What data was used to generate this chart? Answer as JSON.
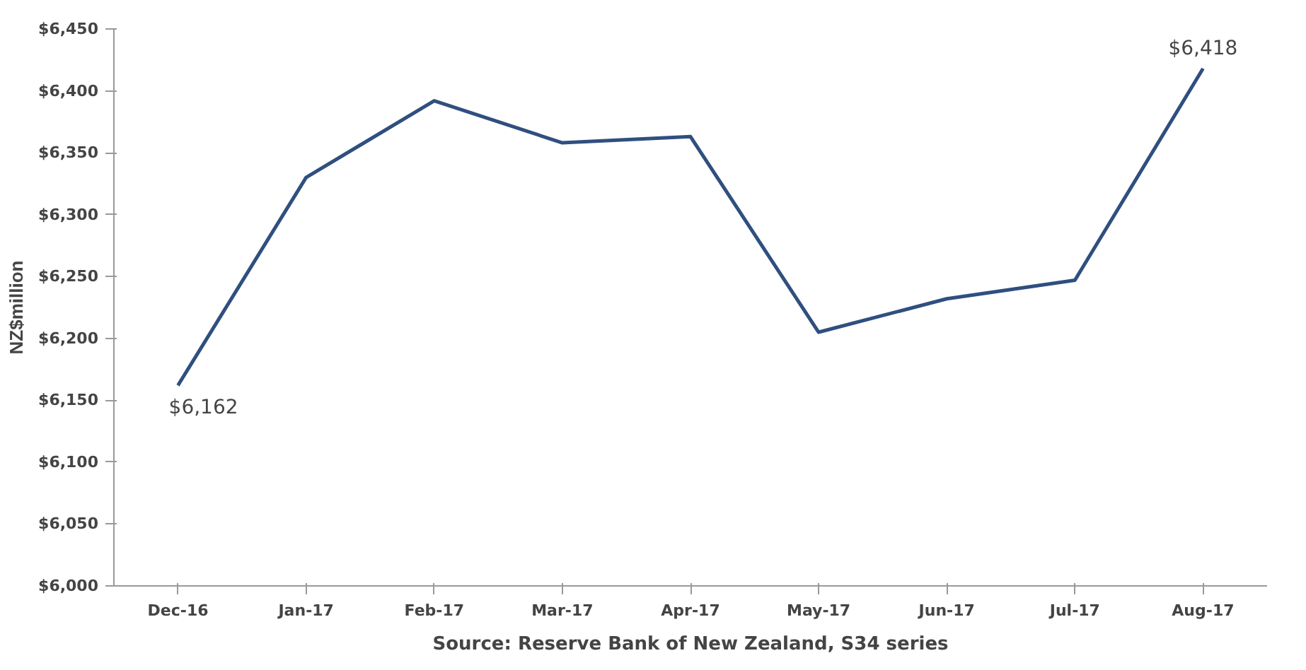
{
  "chart_data": {
    "type": "line",
    "ylabel": "NZ$million",
    "categories": [
      "Dec-16",
      "Jan-17",
      "Feb-17",
      "Mar-17",
      "Apr-17",
      "May-17",
      "Jun-17",
      "Jul-17",
      "Aug-17"
    ],
    "series": [
      {
        "color": "#2f4f7f",
        "values": [
          6162,
          6330,
          6392,
          6358,
          6363,
          6205,
          6232,
          6247,
          6418
        ],
        "value_labels": [
          "$6,162",
          null,
          null,
          null,
          null,
          null,
          null,
          null,
          "$6,418"
        ]
      }
    ],
    "ylim": [
      6000,
      6450
    ],
    "yticks": [
      {
        "value": 6000,
        "label": "$6,000"
      },
      {
        "value": 6050,
        "label": "$6,050"
      },
      {
        "value": 6100,
        "label": "$6,100"
      },
      {
        "value": 6150,
        "label": "$6,150"
      },
      {
        "value": 6200,
        "label": "$6,200"
      },
      {
        "value": 6250,
        "label": "$6,250"
      },
      {
        "value": 6300,
        "label": "$6,300"
      },
      {
        "value": 6350,
        "label": "$6,350"
      },
      {
        "value": 6400,
        "label": "$6,400"
      },
      {
        "value": 6450,
        "label": "$6,450"
      }
    ],
    "grid": false,
    "marker": "none",
    "line_style": "solid",
    "annotations": [
      "Source: Reserve Bank of New Zealand, S34 series"
    ]
  }
}
